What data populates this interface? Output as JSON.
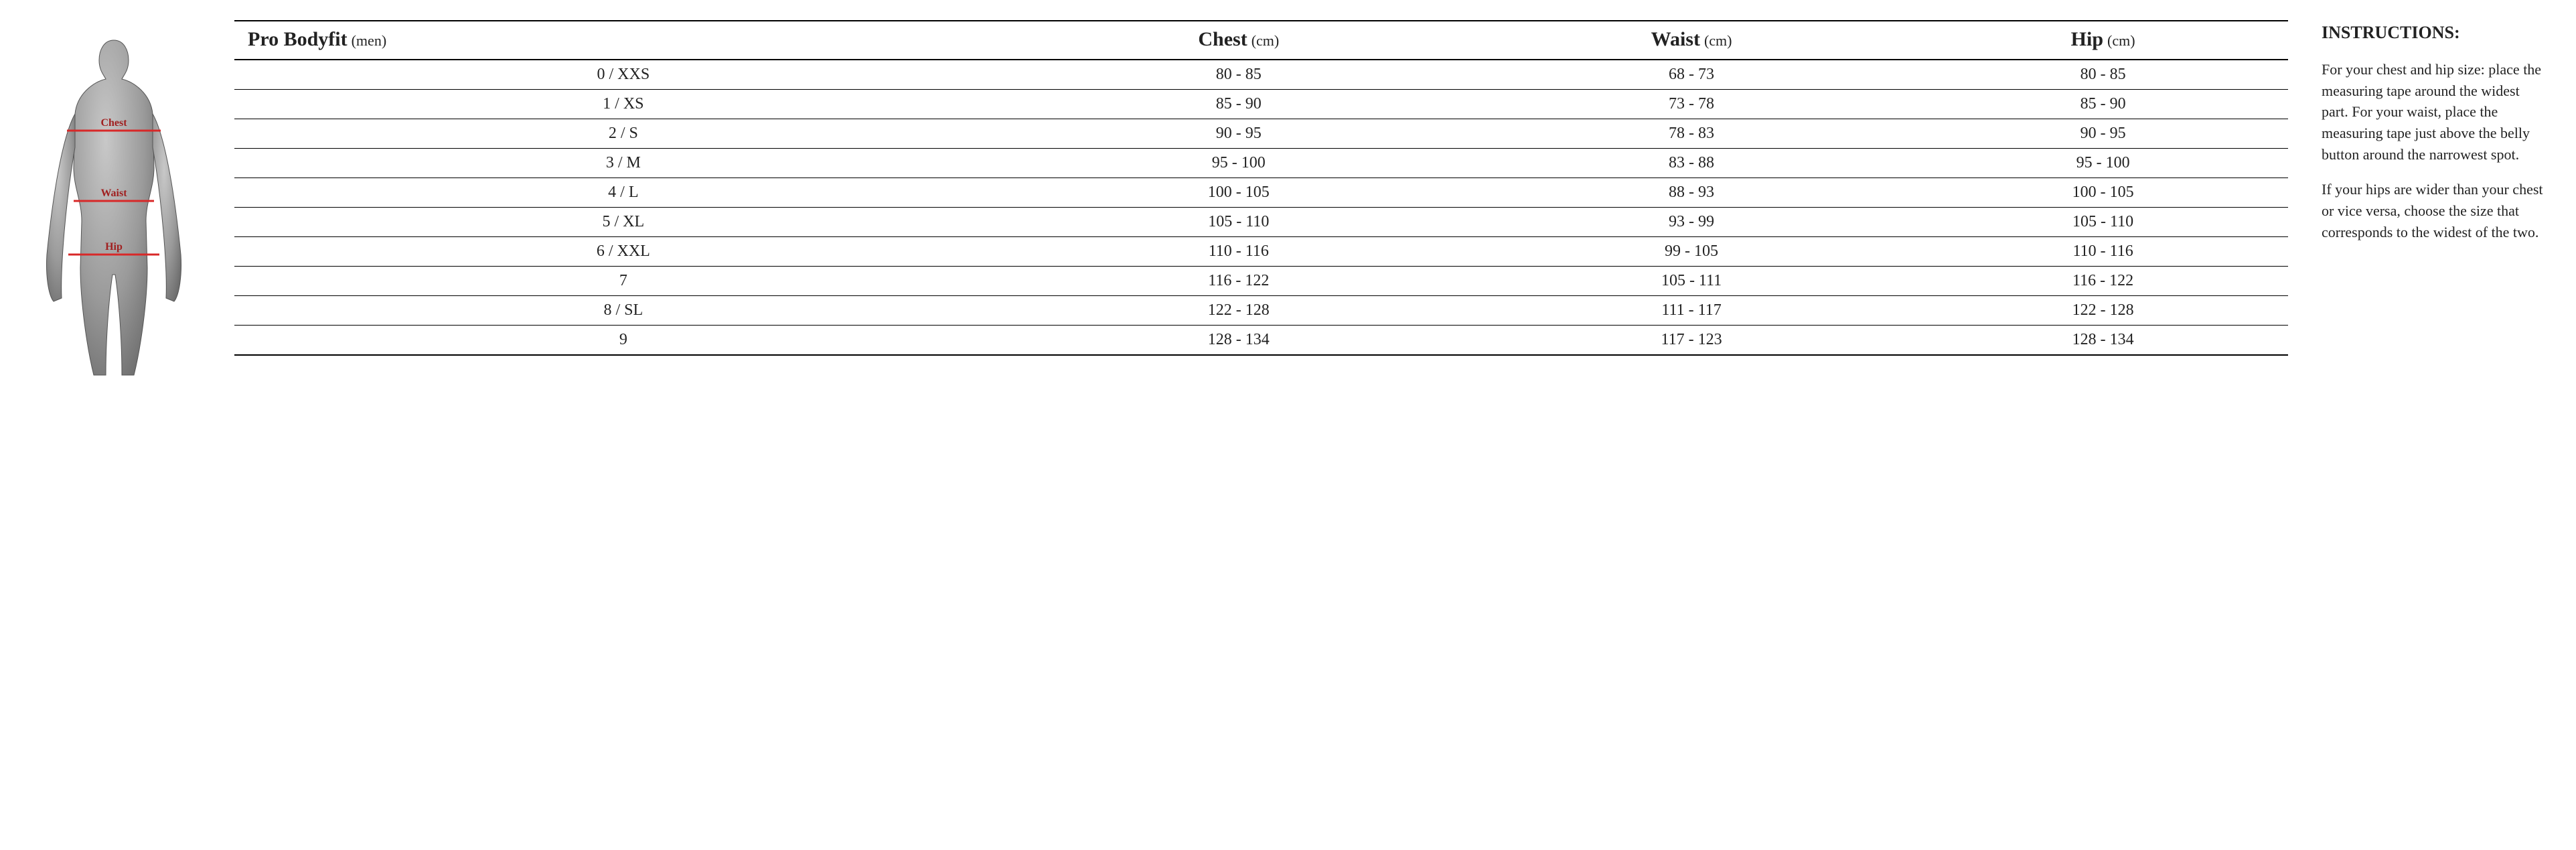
{
  "figure": {
    "labels": {
      "chest": "Chest",
      "waist": "Waist",
      "hip": "Hip"
    },
    "line_color": "#d82828",
    "label_color": "#a02020",
    "body_fill": "#9a9a9a",
    "body_shadow": "#6d6d6d",
    "body_highlight": "#c8c8c8"
  },
  "table": {
    "title_main": "Pro Bodyfit",
    "title_sub": "(men)",
    "columns": [
      {
        "label": "Chest",
        "unit": "(cm)"
      },
      {
        "label": "Waist",
        "unit": "(cm)"
      },
      {
        "label": "Hip",
        "unit": "(cm)"
      }
    ],
    "rows": [
      {
        "size": "0 / XXS",
        "chest": "80 - 85",
        "waist": "68 - 73",
        "hip": "80 - 85"
      },
      {
        "size": "1 / XS",
        "chest": "85 - 90",
        "waist": "73 - 78",
        "hip": "85 - 90"
      },
      {
        "size": "2 / S",
        "chest": "90 - 95",
        "waist": "78 - 83",
        "hip": "90 - 95"
      },
      {
        "size": "3 / M",
        "chest": "95 - 100",
        "waist": "83 - 88",
        "hip": "95 - 100"
      },
      {
        "size": "4 / L",
        "chest": "100 - 105",
        "waist": "88 - 93",
        "hip": "100 - 105"
      },
      {
        "size": "5 / XL",
        "chest": "105 - 110",
        "waist": "93 - 99",
        "hip": "105 - 110"
      },
      {
        "size": "6 / XXL",
        "chest": "110 - 116",
        "waist": "99 - 105",
        "hip": "110 - 116"
      },
      {
        "size": "7",
        "chest": "116 - 122",
        "waist": "105 - 111",
        "hip": "116 - 122"
      },
      {
        "size": "8 / SL",
        "chest": "122 - 128",
        "waist": "111 - 117",
        "hip": "122 - 128"
      },
      {
        "size": "9",
        "chest": "128 - 134",
        "waist": "117 - 123",
        "hip": "128 - 134"
      }
    ],
    "header_fontsize_main": 30,
    "header_fontsize_sub": 22,
    "body_fontsize": 24,
    "border_color": "#000000"
  },
  "instructions": {
    "heading": "INSTRUCTIONS:",
    "p1": "For your chest and hip size: place the measuring tape around the widest part. For your waist, place the measuring tape just above the belly button around the narrowest spot.",
    "p2": "If your hips are wider than your chest or vice versa, choose the size that corresponds to the widest of the two."
  }
}
